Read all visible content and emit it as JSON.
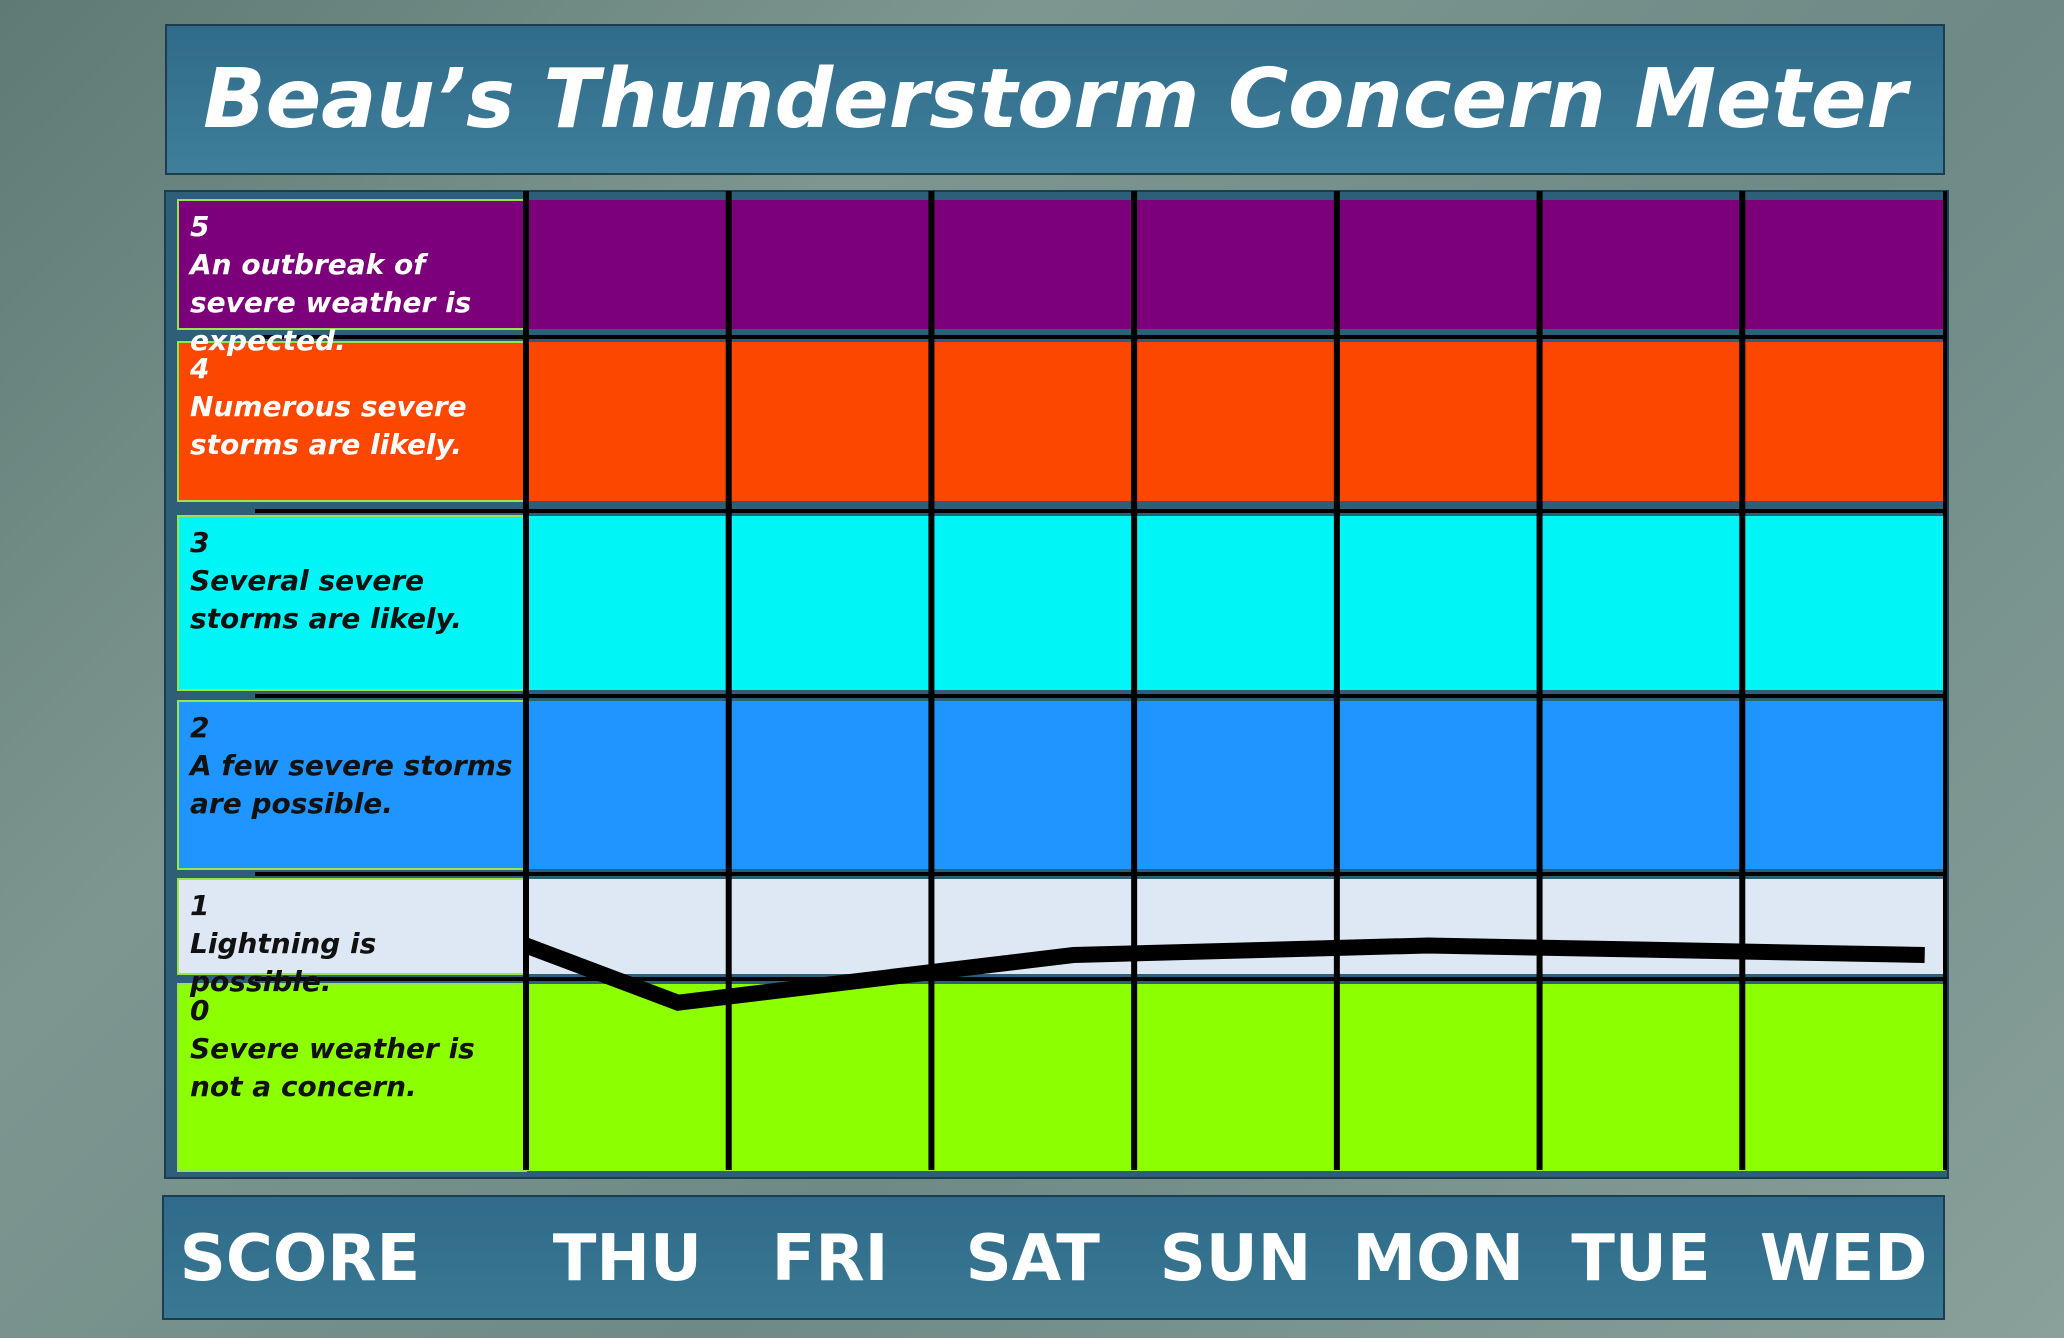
{
  "chart_data": {
    "type": "line",
    "title": "Beau’s Thunderstorm Concern Meter",
    "score_label": "SCORE",
    "categories": [
      "THU",
      "FRI",
      "SAT",
      "SUN",
      "MON",
      "TUE",
      "WED"
    ],
    "xlim": [
      0,
      7
    ],
    "ylim": [
      0,
      6
    ],
    "levels": [
      {
        "value": 0,
        "text": "Severe weather is not a concern.",
        "color": "#8cff00",
        "text_color": "#111111"
      },
      {
        "value": 1,
        "text": "Lightning is possible.",
        "color": "#dde8f4",
        "text_color": "#111111"
      },
      {
        "value": 2,
        "text": "A few severe storms are possible.",
        "color": "#1f95ff",
        "text_color": "#111111"
      },
      {
        "value": 3,
        "text": "Several severe storms are likely.",
        "color": "#00f6f6",
        "text_color": "#111111"
      },
      {
        "value": 4,
        "text": "Numerous severe storms are likely.",
        "color": "#fc4700",
        "text_color": "#ffffff"
      },
      {
        "value": 5,
        "text": "An outbreak of severe weather is expected.",
        "color": "#7b0079",
        "text_color": "#ffffff"
      }
    ],
    "x": [
      0,
      0.75,
      2.7,
      4.45,
      6.9
    ],
    "values": [
      1.3,
      0.9,
      1.2,
      1.3,
      1.2
    ],
    "color": "#000000"
  }
}
